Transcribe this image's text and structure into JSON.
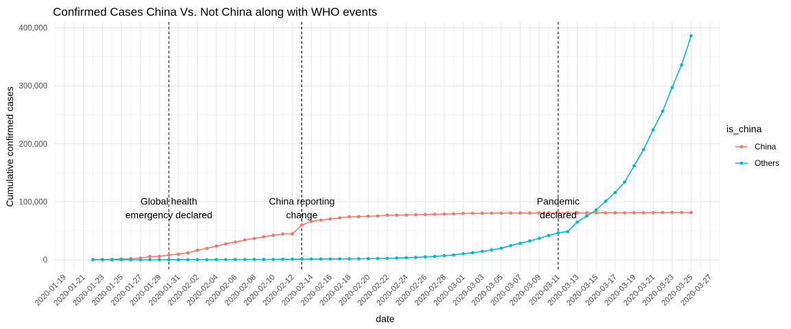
{
  "chart_data": {
    "type": "line",
    "title": "Confirmed Cases China Vs. Not China along with WHO events",
    "xlabel": "date",
    "ylabel": "Cumulative confirmed cases",
    "xlim": [
      "2020-01-18",
      "2020-03-28"
    ],
    "ylim": [
      -20000,
      410000
    ],
    "grid": true,
    "legend": {
      "title": "is_china",
      "placement": "right"
    },
    "x_tick_labels": [
      "2020-01-19",
      "2020-01-21",
      "2020-01-23",
      "2020-01-25",
      "2020-01-27",
      "2020-01-29",
      "2020-01-31",
      "2020-02-02",
      "2020-02-04",
      "2020-02-06",
      "2020-02-08",
      "2020-02-10",
      "2020-02-12",
      "2020-02-14",
      "2020-02-16",
      "2020-02-18",
      "2020-02-20",
      "2020-02-22",
      "2020-02-24",
      "2020-02-26",
      "2020-02-28",
      "2020-03-01",
      "2020-03-03",
      "2020-03-05",
      "2020-03-07",
      "2020-03-09",
      "2020-03-11",
      "2020-03-13",
      "2020-03-15",
      "2020-03-17",
      "2020-03-19",
      "2020-03-21",
      "2020-03-23",
      "2020-03-25",
      "2020-03-27"
    ],
    "y_ticks": [
      0,
      100000,
      200000,
      300000,
      400000
    ],
    "y_tick_labels": [
      "0",
      "100,000",
      "200,000",
      "300,000",
      "400,000"
    ],
    "series": [
      {
        "name": "China",
        "color": "#f8766d",
        "x": [
          "2020-01-22",
          "2020-01-23",
          "2020-01-24",
          "2020-01-25",
          "2020-01-26",
          "2020-01-27",
          "2020-01-28",
          "2020-01-29",
          "2020-01-30",
          "2020-01-31",
          "2020-02-01",
          "2020-02-02",
          "2020-02-03",
          "2020-02-04",
          "2020-02-05",
          "2020-02-06",
          "2020-02-07",
          "2020-02-08",
          "2020-02-09",
          "2020-02-10",
          "2020-02-11",
          "2020-02-12",
          "2020-02-13",
          "2020-02-14",
          "2020-02-15",
          "2020-02-16",
          "2020-02-17",
          "2020-02-18",
          "2020-02-19",
          "2020-02-20",
          "2020-02-21",
          "2020-02-22",
          "2020-02-23",
          "2020-02-24",
          "2020-02-25",
          "2020-02-26",
          "2020-02-27",
          "2020-02-28",
          "2020-02-29",
          "2020-03-01",
          "2020-03-02",
          "2020-03-03",
          "2020-03-04",
          "2020-03-05",
          "2020-03-06",
          "2020-03-07",
          "2020-03-08",
          "2020-03-09",
          "2020-03-10",
          "2020-03-11",
          "2020-03-12",
          "2020-03-13",
          "2020-03-14",
          "2020-03-15",
          "2020-03-16",
          "2020-03-17",
          "2020-03-18",
          "2020-03-19",
          "2020-03-20",
          "2020-03-21",
          "2020-03-22",
          "2020-03-23",
          "2020-03-24",
          "2020-03-25"
        ],
        "y": [
          548,
          643,
          920,
          1406,
          2075,
          2877,
          5509,
          6087,
          8141,
          9802,
          11891,
          16630,
          19716,
          23707,
          27440,
          30587,
          34110,
          36814,
          39829,
          42354,
          44386,
          44759,
          59895,
          66358,
          68413,
          70513,
          72434,
          74211,
          74619,
          75077,
          75550,
          77001,
          77022,
          77241,
          77754,
          78166,
          78600,
          78928,
          79356,
          79932,
          80136,
          80261,
          80386,
          80537,
          80690,
          80770,
          80823,
          80860,
          80887,
          80921,
          80932,
          80945,
          80977,
          81003,
          81033,
          81058,
          81102,
          81156,
          81250,
          81305,
          81435,
          81498,
          81591,
          81661
        ]
      },
      {
        "name": "Others",
        "color": "#00bfc4",
        "x": [
          "2020-01-22",
          "2020-01-23",
          "2020-01-24",
          "2020-01-25",
          "2020-01-26",
          "2020-01-27",
          "2020-01-28",
          "2020-01-29",
          "2020-01-30",
          "2020-01-31",
          "2020-02-01",
          "2020-02-02",
          "2020-02-03",
          "2020-02-04",
          "2020-02-05",
          "2020-02-06",
          "2020-02-07",
          "2020-02-08",
          "2020-02-09",
          "2020-02-10",
          "2020-02-11",
          "2020-02-12",
          "2020-02-13",
          "2020-02-14",
          "2020-02-15",
          "2020-02-16",
          "2020-02-17",
          "2020-02-18",
          "2020-02-19",
          "2020-02-20",
          "2020-02-21",
          "2020-02-22",
          "2020-02-23",
          "2020-02-24",
          "2020-02-25",
          "2020-02-26",
          "2020-02-27",
          "2020-02-28",
          "2020-02-29",
          "2020-03-01",
          "2020-03-02",
          "2020-03-03",
          "2020-03-04",
          "2020-03-05",
          "2020-03-06",
          "2020-03-07",
          "2020-03-08",
          "2020-03-09",
          "2020-03-10",
          "2020-03-11",
          "2020-03-12",
          "2020-03-13",
          "2020-03-14",
          "2020-03-15",
          "2020-03-16",
          "2020-03-17",
          "2020-03-18",
          "2020-03-19",
          "2020-03-20",
          "2020-03-21",
          "2020-03-22",
          "2020-03-23",
          "2020-03-24",
          "2020-03-25"
        ],
        "y": [
          7,
          11,
          21,
          28,
          43,
          50,
          70,
          82,
          124,
          171,
          208,
          238,
          274,
          319,
          380,
          460,
          533,
          579,
          644,
          690,
          1000,
          1100,
          1200,
          1300,
          1380,
          1450,
          1560,
          1700,
          1850,
          2000,
          2300,
          2600,
          3100,
          3500,
          4100,
          5000,
          5900,
          7100,
          8400,
          10500,
          12300,
          14500,
          17000,
          20000,
          24500,
          28500,
          32500,
          37000,
          42000,
          46500,
          48700,
          65000,
          75500,
          86000,
          101000,
          116000,
          134000,
          162000,
          190000,
          224000,
          256000,
          297000,
          336000,
          386000
        ]
      }
    ],
    "annotations": [
      {
        "x": "2020-01-30",
        "lines": [
          "Global health",
          "emergency declared"
        ]
      },
      {
        "x": "2020-02-13",
        "lines": [
          "China reporting",
          "change"
        ]
      },
      {
        "x": "2020-03-11",
        "lines": [
          "Pandemic",
          "declared"
        ]
      }
    ]
  }
}
